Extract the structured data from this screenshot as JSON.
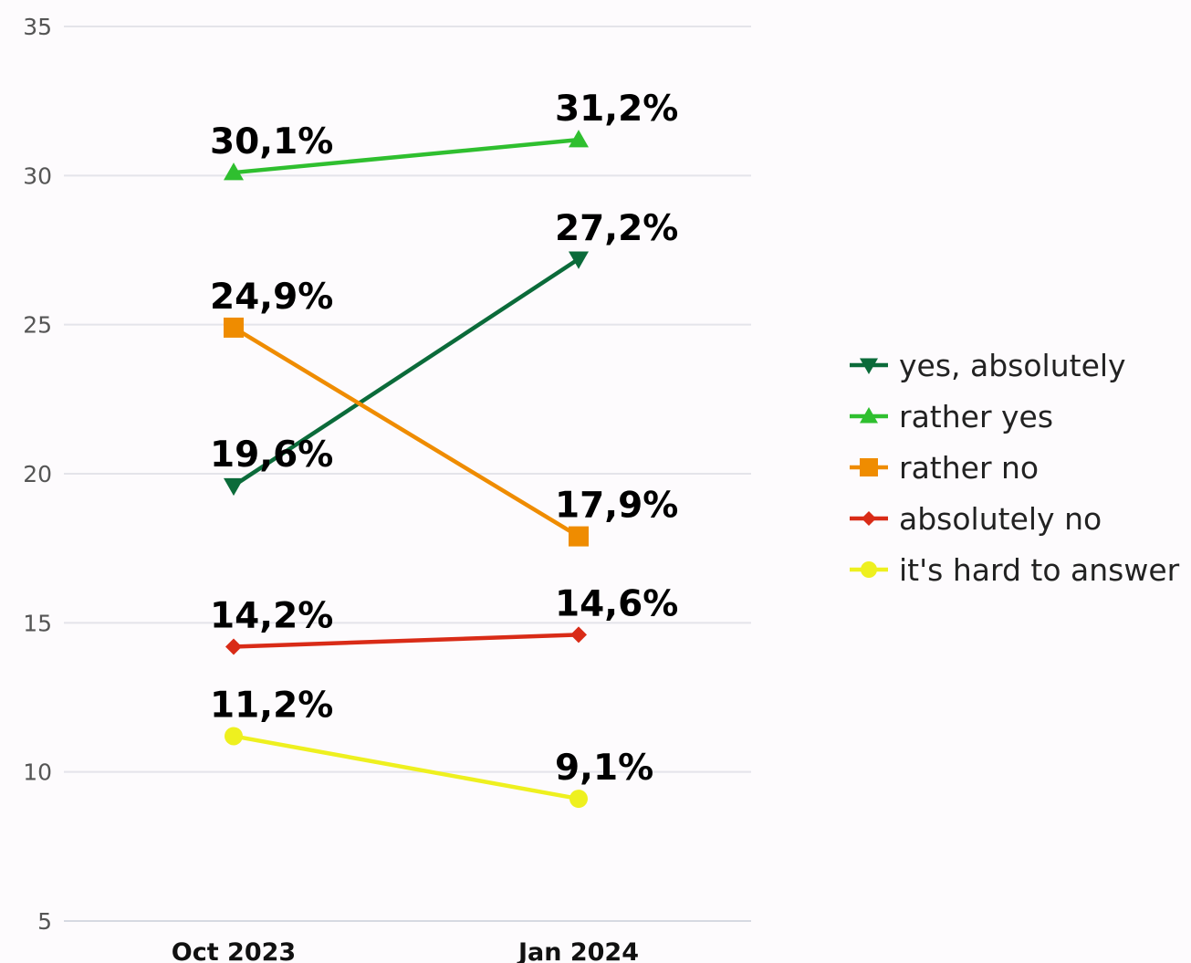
{
  "chart_data": {
    "type": "line",
    "categories": [
      "Oct 2023",
      "Jan 2024"
    ],
    "ylim": [
      5,
      35
    ],
    "yticks": [
      5,
      10,
      15,
      20,
      25,
      30,
      35
    ],
    "grid": true,
    "legend_position": "right",
    "series": [
      {
        "name": "yes, absolutely",
        "values": [
          19.6,
          27.2
        ],
        "labels": [
          "19,6%",
          "27,2%"
        ],
        "color": "#0b6b3a",
        "marker": "triangle-down"
      },
      {
        "name": "rather yes",
        "values": [
          30.1,
          31.2
        ],
        "labels": [
          "30,1%",
          "31,2%"
        ],
        "color": "#2fbf2f",
        "marker": "triangle-up"
      },
      {
        "name": "rather no",
        "values": [
          24.9,
          17.9
        ],
        "labels": [
          "24,9%",
          "17,9%"
        ],
        "color": "#ef8c00",
        "marker": "square"
      },
      {
        "name": "absolutely no",
        "values": [
          14.2,
          14.6
        ],
        "labels": [
          "14,2%",
          "14,6%"
        ],
        "color": "#d92b17",
        "marker": "diamond"
      },
      {
        "name": "it's hard to answer",
        "values": [
          11.2,
          9.1
        ],
        "labels": [
          "11,2%",
          "9,1%"
        ],
        "color": "#eef01f",
        "marker": "circle"
      }
    ]
  }
}
